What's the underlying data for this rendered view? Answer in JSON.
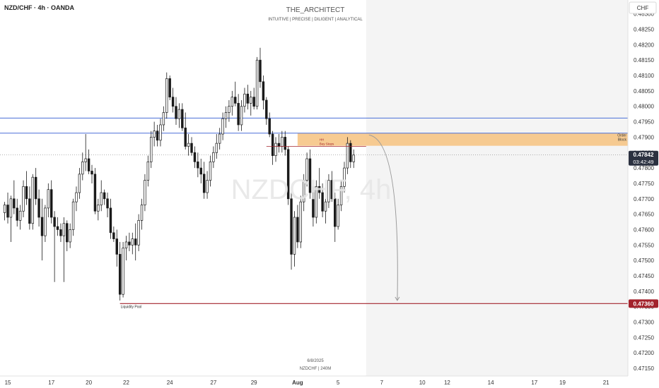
{
  "header": {
    "symbol_label": "NZD/CHF · 4h · OANDA",
    "author": "THE_ARCHITECT",
    "tagline": "INTUITIVE | PRECISE | DILIGENT | ANALYTICAL",
    "currency_button": "CHF"
  },
  "watermark": "NZDCHF, 4h",
  "footer": {
    "date": "6/8/2025",
    "pair_interval": "NZDCHF | 240M"
  },
  "annotations": {
    "order_block_label_1": "Order",
    "order_block_label_2": "Block",
    "buy_stops_label_1": "HH",
    "buy_stops_label_2": "Buy Stops",
    "liquidity_pool_label": "Liquidity Pool"
  },
  "price_badges": {
    "current_price": "0.47842",
    "countdown": "03:42:49",
    "target_price": "0.47360"
  },
  "colors": {
    "candle": "#1a1a1a",
    "blue_line": "#4a6fd8",
    "red_line": "#a3232c",
    "order_block": "#f6c27f",
    "badge_dark": "#2b3140",
    "badge_red": "#a3232c",
    "projection_bg": "#f4f4f4"
  },
  "chart_data": {
    "type": "candlestick",
    "interval": "4h",
    "y_axis": {
      "ticks": [
        "0.48300",
        "0.48250",
        "0.48200",
        "0.48150",
        "0.48100",
        "0.48050",
        "0.48000",
        "0.47950",
        "0.47900",
        "0.47850",
        "0.47800",
        "0.47750",
        "0.47700",
        "0.47650",
        "0.47600",
        "0.47550",
        "0.47500",
        "0.47450",
        "0.47400",
        "0.47350",
        "0.47300",
        "0.47250",
        "0.47200",
        "0.47150"
      ],
      "range": [
        0.47125,
        0.48345
      ]
    },
    "x_axis": {
      "ticks": [
        {
          "label": "15",
          "i": 1
        },
        {
          "label": "17",
          "i": 15
        },
        {
          "label": "20",
          "i": 27
        },
        {
          "label": "22",
          "i": 39
        },
        {
          "label": "24",
          "i": 53
        },
        {
          "label": "27",
          "i": 67
        },
        {
          "label": "29",
          "i": 80
        },
        {
          "label": "Aug",
          "i": 94
        },
        {
          "label": "5",
          "i": 107
        },
        {
          "label": "7",
          "i": 121
        },
        {
          "label": "10",
          "i": 134
        },
        {
          "label": "12",
          "i": 142
        },
        {
          "label": "14",
          "i": 156
        },
        {
          "label": "17",
          "i": 170
        },
        {
          "label": "19",
          "i": 179
        },
        {
          "label": "21",
          "i": 193
        }
      ],
      "range": [
        -1.5,
        200
      ]
    },
    "levels": [
      {
        "name": "upper resistance",
        "price": 0.47962,
        "style": "blue"
      },
      {
        "name": "resistance",
        "price": 0.47913,
        "style": "blue"
      },
      {
        "name": "liquidity pool",
        "price": 0.4736,
        "style": "red"
      },
      {
        "name": "current price",
        "price": 0.47842,
        "style": "dotted"
      }
    ],
    "order_block": {
      "top": 0.47913,
      "bottom": 0.47872,
      "i_start": 94,
      "i_end": 200
    },
    "buy_stops": {
      "price": 0.4787,
      "i_start": 84,
      "i_end": 116
    },
    "projection": {
      "i_start": 116,
      "i_end": 200,
      "from_price": 0.479,
      "to_price": 0.4737
    },
    "candles": [
      {
        "o": 0.47655,
        "h": 0.4769,
        "l": 0.4763,
        "c": 0.4768
      },
      {
        "o": 0.4768,
        "h": 0.4772,
        "l": 0.4762,
        "c": 0.4764
      },
      {
        "o": 0.4764,
        "h": 0.4771,
        "l": 0.4756,
        "c": 0.477
      },
      {
        "o": 0.477,
        "h": 0.4776,
        "l": 0.4765,
        "c": 0.4767
      },
      {
        "o": 0.4767,
        "h": 0.477,
        "l": 0.4761,
        "c": 0.4763
      },
      {
        "o": 0.4763,
        "h": 0.4768,
        "l": 0.476,
        "c": 0.4766
      },
      {
        "o": 0.4766,
        "h": 0.4776,
        "l": 0.4764,
        "c": 0.4774
      },
      {
        "o": 0.4774,
        "h": 0.4779,
        "l": 0.4768,
        "c": 0.477
      },
      {
        "o": 0.477,
        "h": 0.4774,
        "l": 0.476,
        "c": 0.4762
      },
      {
        "o": 0.4762,
        "h": 0.4778,
        "l": 0.476,
        "c": 0.4777
      },
      {
        "o": 0.4777,
        "h": 0.478,
        "l": 0.4768,
        "c": 0.477
      },
      {
        "o": 0.477,
        "h": 0.4773,
        "l": 0.4761,
        "c": 0.4764
      },
      {
        "o": 0.4764,
        "h": 0.477,
        "l": 0.475,
        "c": 0.4758
      },
      {
        "o": 0.4758,
        "h": 0.4768,
        "l": 0.4756,
        "c": 0.4767
      },
      {
        "o": 0.4767,
        "h": 0.4775,
        "l": 0.4764,
        "c": 0.4773
      },
      {
        "o": 0.4773,
        "h": 0.4776,
        "l": 0.4762,
        "c": 0.4764
      },
      {
        "o": 0.4764,
        "h": 0.4766,
        "l": 0.4743,
        "c": 0.4761
      },
      {
        "o": 0.4761,
        "h": 0.4764,
        "l": 0.4758,
        "c": 0.476
      },
      {
        "o": 0.476,
        "h": 0.4762,
        "l": 0.4756,
        "c": 0.4758
      },
      {
        "o": 0.4758,
        "h": 0.4764,
        "l": 0.4743,
        "c": 0.4762
      },
      {
        "o": 0.4762,
        "h": 0.4763,
        "l": 0.4753,
        "c": 0.4756
      },
      {
        "o": 0.4756,
        "h": 0.4762,
        "l": 0.4754,
        "c": 0.476
      },
      {
        "o": 0.476,
        "h": 0.477,
        "l": 0.4758,
        "c": 0.4769
      },
      {
        "o": 0.4769,
        "h": 0.4774,
        "l": 0.4766,
        "c": 0.4772
      },
      {
        "o": 0.4772,
        "h": 0.478,
        "l": 0.477,
        "c": 0.4778
      },
      {
        "o": 0.4778,
        "h": 0.4785,
        "l": 0.4776,
        "c": 0.4782
      },
      {
        "o": 0.4782,
        "h": 0.4791,
        "l": 0.4779,
        "c": 0.4783
      },
      {
        "o": 0.4783,
        "h": 0.4786,
        "l": 0.4778,
        "c": 0.4779
      },
      {
        "o": 0.4779,
        "h": 0.4781,
        "l": 0.4775,
        "c": 0.4778
      },
      {
        "o": 0.4778,
        "h": 0.478,
        "l": 0.4765,
        "c": 0.4766
      },
      {
        "o": 0.4766,
        "h": 0.477,
        "l": 0.4763,
        "c": 0.4768
      },
      {
        "o": 0.4768,
        "h": 0.4776,
        "l": 0.4766,
        "c": 0.4772
      },
      {
        "o": 0.4772,
        "h": 0.4773,
        "l": 0.4768,
        "c": 0.477
      },
      {
        "o": 0.477,
        "h": 0.4772,
        "l": 0.4764,
        "c": 0.4767
      },
      {
        "o": 0.4767,
        "h": 0.477,
        "l": 0.4757,
        "c": 0.4759
      },
      {
        "o": 0.4759,
        "h": 0.4761,
        "l": 0.4756,
        "c": 0.4757
      },
      {
        "o": 0.4757,
        "h": 0.476,
        "l": 0.4748,
        "c": 0.4752
      },
      {
        "o": 0.4752,
        "h": 0.4756,
        "l": 0.4737,
        "c": 0.4739
      },
      {
        "o": 0.4739,
        "h": 0.4756,
        "l": 0.4738,
        "c": 0.4754
      },
      {
        "o": 0.4754,
        "h": 0.4758,
        "l": 0.475,
        "c": 0.4756
      },
      {
        "o": 0.4756,
        "h": 0.4759,
        "l": 0.4753,
        "c": 0.4755
      },
      {
        "o": 0.4755,
        "h": 0.4759,
        "l": 0.4752,
        "c": 0.4757
      },
      {
        "o": 0.4757,
        "h": 0.4762,
        "l": 0.475,
        "c": 0.4755
      },
      {
        "o": 0.4755,
        "h": 0.4765,
        "l": 0.4753,
        "c": 0.4763
      },
      {
        "o": 0.4763,
        "h": 0.477,
        "l": 0.476,
        "c": 0.4768
      },
      {
        "o": 0.4768,
        "h": 0.4778,
        "l": 0.4766,
        "c": 0.4776
      },
      {
        "o": 0.4776,
        "h": 0.4784,
        "l": 0.4774,
        "c": 0.4782
      },
      {
        "o": 0.4782,
        "h": 0.4792,
        "l": 0.478,
        "c": 0.479
      },
      {
        "o": 0.479,
        "h": 0.4795,
        "l": 0.4787,
        "c": 0.4792
      },
      {
        "o": 0.4792,
        "h": 0.4794,
        "l": 0.4787,
        "c": 0.4789
      },
      {
        "o": 0.4789,
        "h": 0.4796,
        "l": 0.4787,
        "c": 0.4794
      },
      {
        "o": 0.4794,
        "h": 0.48,
        "l": 0.4792,
        "c": 0.4798
      },
      {
        "o": 0.4798,
        "h": 0.4811,
        "l": 0.4796,
        "c": 0.4809
      },
      {
        "o": 0.4809,
        "h": 0.481,
        "l": 0.4802,
        "c": 0.4803
      },
      {
        "o": 0.4803,
        "h": 0.4806,
        "l": 0.4798,
        "c": 0.48
      },
      {
        "o": 0.48,
        "h": 0.4803,
        "l": 0.4794,
        "c": 0.4796
      },
      {
        "o": 0.4796,
        "h": 0.4801,
        "l": 0.4793,
        "c": 0.4799
      },
      {
        "o": 0.4799,
        "h": 0.4801,
        "l": 0.4792,
        "c": 0.4793
      },
      {
        "o": 0.4793,
        "h": 0.4798,
        "l": 0.4786,
        "c": 0.4787
      },
      {
        "o": 0.4787,
        "h": 0.4791,
        "l": 0.4784,
        "c": 0.4788
      },
      {
        "o": 0.4788,
        "h": 0.479,
        "l": 0.4784,
        "c": 0.4785
      },
      {
        "o": 0.4785,
        "h": 0.4787,
        "l": 0.478,
        "c": 0.4782
      },
      {
        "o": 0.4782,
        "h": 0.4785,
        "l": 0.4777,
        "c": 0.478
      },
      {
        "o": 0.478,
        "h": 0.4783,
        "l": 0.4775,
        "c": 0.4778
      },
      {
        "o": 0.4778,
        "h": 0.4782,
        "l": 0.477,
        "c": 0.4772
      },
      {
        "o": 0.4772,
        "h": 0.4779,
        "l": 0.477,
        "c": 0.4776
      },
      {
        "o": 0.4776,
        "h": 0.4784,
        "l": 0.4774,
        "c": 0.4782
      },
      {
        "o": 0.4782,
        "h": 0.4787,
        "l": 0.478,
        "c": 0.4785
      },
      {
        "o": 0.4785,
        "h": 0.4791,
        "l": 0.4783,
        "c": 0.4788
      },
      {
        "o": 0.4788,
        "h": 0.4793,
        "l": 0.4786,
        "c": 0.4791
      },
      {
        "o": 0.4791,
        "h": 0.4798,
        "l": 0.4789,
        "c": 0.4796
      },
      {
        "o": 0.4796,
        "h": 0.48,
        "l": 0.4793,
        "c": 0.4798
      },
      {
        "o": 0.4798,
        "h": 0.4802,
        "l": 0.4795,
        "c": 0.48
      },
      {
        "o": 0.48,
        "h": 0.4805,
        "l": 0.4797,
        "c": 0.4803
      },
      {
        "o": 0.4803,
        "h": 0.4808,
        "l": 0.48,
        "c": 0.4801
      },
      {
        "o": 0.4801,
        "h": 0.4804,
        "l": 0.4792,
        "c": 0.4794
      },
      {
        "o": 0.4794,
        "h": 0.4802,
        "l": 0.4792,
        "c": 0.48
      },
      {
        "o": 0.48,
        "h": 0.4806,
        "l": 0.4798,
        "c": 0.4804
      },
      {
        "o": 0.4804,
        "h": 0.4807,
        "l": 0.4799,
        "c": 0.4801
      },
      {
        "o": 0.4801,
        "h": 0.4805,
        "l": 0.4797,
        "c": 0.4803
      },
      {
        "o": 0.4803,
        "h": 0.4806,
        "l": 0.4799,
        "c": 0.48
      },
      {
        "o": 0.48,
        "h": 0.4816,
        "l": 0.4799,
        "c": 0.4815
      },
      {
        "o": 0.4815,
        "h": 0.4819,
        "l": 0.4806,
        "c": 0.4808
      },
      {
        "o": 0.4808,
        "h": 0.481,
        "l": 0.4799,
        "c": 0.4802
      },
      {
        "o": 0.4802,
        "h": 0.4803,
        "l": 0.4794,
        "c": 0.4796
      },
      {
        "o": 0.4796,
        "h": 0.4798,
        "l": 0.479,
        "c": 0.4791
      },
      {
        "o": 0.4791,
        "h": 0.4792,
        "l": 0.4781,
        "c": 0.4784
      },
      {
        "o": 0.4784,
        "h": 0.479,
        "l": 0.4782,
        "c": 0.4788
      },
      {
        "o": 0.4788,
        "h": 0.4791,
        "l": 0.4785,
        "c": 0.4787
      },
      {
        "o": 0.4787,
        "h": 0.4792,
        "l": 0.4785,
        "c": 0.479
      },
      {
        "o": 0.479,
        "h": 0.4792,
        "l": 0.4784,
        "c": 0.4786
      },
      {
        "o": 0.4786,
        "h": 0.4787,
        "l": 0.4768,
        "c": 0.477
      },
      {
        "o": 0.477,
        "h": 0.4772,
        "l": 0.4747,
        "c": 0.4752
      },
      {
        "o": 0.4752,
        "h": 0.4766,
        "l": 0.4748,
        "c": 0.4764
      },
      {
        "o": 0.4764,
        "h": 0.4768,
        "l": 0.4754,
        "c": 0.4756
      },
      {
        "o": 0.4756,
        "h": 0.4771,
        "l": 0.4754,
        "c": 0.4769
      },
      {
        "o": 0.4769,
        "h": 0.4778,
        "l": 0.4766,
        "c": 0.4776
      },
      {
        "o": 0.4776,
        "h": 0.4785,
        "l": 0.4774,
        "c": 0.4783
      },
      {
        "o": 0.4783,
        "h": 0.4786,
        "l": 0.477,
        "c": 0.4772
      },
      {
        "o": 0.4772,
        "h": 0.4774,
        "l": 0.4761,
        "c": 0.4764
      },
      {
        "o": 0.4764,
        "h": 0.4776,
        "l": 0.4762,
        "c": 0.4774
      },
      {
        "o": 0.4774,
        "h": 0.478,
        "l": 0.477,
        "c": 0.4772
      },
      {
        "o": 0.4772,
        "h": 0.4775,
        "l": 0.4764,
        "c": 0.4766
      },
      {
        "o": 0.4766,
        "h": 0.477,
        "l": 0.4762,
        "c": 0.4769
      },
      {
        "o": 0.4769,
        "h": 0.4778,
        "l": 0.4767,
        "c": 0.4776
      },
      {
        "o": 0.4776,
        "h": 0.4779,
        "l": 0.4769,
        "c": 0.477
      },
      {
        "o": 0.477,
        "h": 0.4772,
        "l": 0.4756,
        "c": 0.4761
      },
      {
        "o": 0.4761,
        "h": 0.477,
        "l": 0.476,
        "c": 0.4768
      },
      {
        "o": 0.4768,
        "h": 0.4776,
        "l": 0.4766,
        "c": 0.4774
      },
      {
        "o": 0.4774,
        "h": 0.4782,
        "l": 0.4772,
        "c": 0.478
      },
      {
        "o": 0.478,
        "h": 0.479,
        "l": 0.4778,
        "c": 0.4788
      },
      {
        "o": 0.4788,
        "h": 0.4789,
        "l": 0.478,
        "c": 0.4782
      },
      {
        "o": 0.4782,
        "h": 0.4786,
        "l": 0.478,
        "c": 0.47842
      }
    ]
  }
}
